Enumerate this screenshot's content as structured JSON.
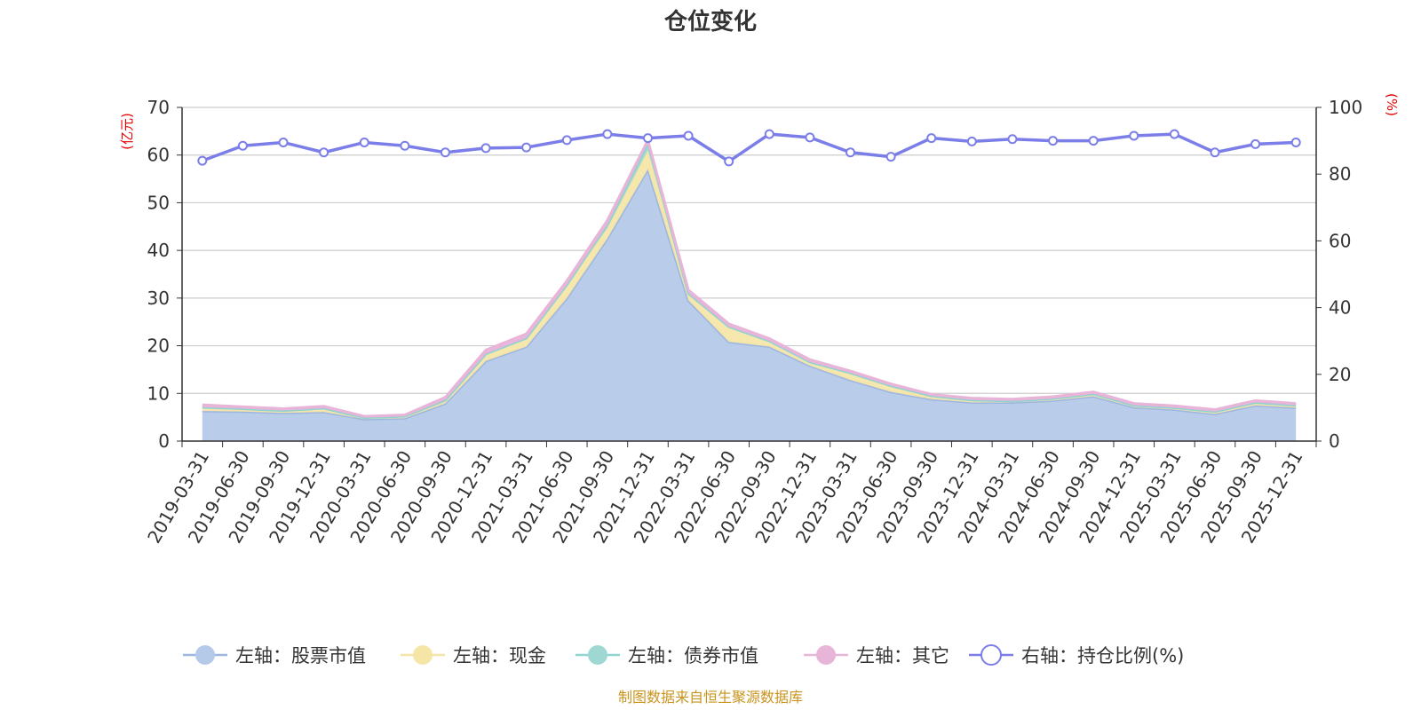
{
  "source_note": "制图数据来自恒生聚源数据库",
  "chart_data": {
    "type": "area",
    "title": "仓位变化",
    "y_left_unit": "(亿元)",
    "y_right_unit": "(%)",
    "y_left_range": [
      0,
      70
    ],
    "y_left_ticks": [
      "0",
      "10",
      "20",
      "30",
      "40",
      "50",
      "60",
      "70"
    ],
    "y_right_range": [
      0,
      100
    ],
    "y_right_ticks": [
      "0",
      "20",
      "40",
      "60",
      "80",
      "100"
    ],
    "grid": true,
    "legend_position": "bottom",
    "categories": [
      "2019-03-31",
      "2019-06-30",
      "2019-09-30",
      "2019-12-31",
      "2020-03-31",
      "2020-06-30",
      "2020-09-30",
      "2020-12-31",
      "2021-03-31",
      "2021-06-30",
      "2021-09-30",
      "2021-12-31",
      "2022-03-31",
      "2022-06-30",
      "2022-09-30",
      "2022-12-31",
      "2023-03-31",
      "2023-06-30",
      "2023-09-30",
      "2023-12-31",
      "2024-03-31",
      "2024-06-30",
      "2024-09-30",
      "2024-12-31",
      "2025-03-31",
      "2025-06-30",
      "2025-09-30",
      "2025-12-31"
    ],
    "series": [
      {
        "name": "左轴：股票市值",
        "axis": "left",
        "stacked": true,
        "color": "#9db6e0",
        "fill": "#b5c9e8",
        "values": [
          6.3,
          6.2,
          5.9,
          6.1,
          4.6,
          4.8,
          7.9,
          16.8,
          19.8,
          30.0,
          42.5,
          57.0,
          29.5,
          20.8,
          19.8,
          15.8,
          12.8,
          10.3,
          8.8,
          8.1,
          8.1,
          8.5,
          9.4,
          7.1,
          6.6,
          5.7,
          7.5,
          7.0
        ]
      },
      {
        "name": "左轴：现金",
        "axis": "left",
        "stacked": true,
        "color": "#f5e6a8",
        "fill": "#f5e6a8",
        "values": [
          0.8,
          0.6,
          0.5,
          0.8,
          0.3,
          0.4,
          0.7,
          1.5,
          1.8,
          2.8,
          2.2,
          4.0,
          1.5,
          3.2,
          1.2,
          0.8,
          1.5,
          1.3,
          0.7,
          0.5,
          0.3,
          0.4,
          0.5,
          0.4,
          0.4,
          0.5,
          0.6,
          0.5
        ]
      },
      {
        "name": "左轴：债券市值",
        "axis": "left",
        "stacked": true,
        "color": "#8fd3d3",
        "fill": "#9fd8d3",
        "values": [
          0,
          0,
          0,
          0,
          0,
          0,
          0,
          0,
          0,
          0,
          0.7,
          1.5,
          0,
          0,
          0,
          0,
          0,
          0,
          0,
          0,
          0,
          0,
          0,
          0,
          0,
          0,
          0,
          0
        ]
      },
      {
        "name": "左轴：其它",
        "axis": "left",
        "stacked": true,
        "color": "#e8b4d8",
        "fill": "#e8b4d8",
        "values": [
          0.5,
          0.4,
          0.4,
          0.4,
          0.3,
          0.3,
          0.6,
          0.8,
          0.9,
          0.8,
          0.9,
          0.6,
          0.7,
          0.6,
          0.5,
          0.5,
          0.4,
          0.4,
          0.3,
          0.4,
          0.4,
          0.4,
          0.4,
          0.4,
          0.4,
          0.4,
          0.4,
          0.4
        ]
      },
      {
        "name": "右轴：持仓比例(%)",
        "axis": "right",
        "type": "line",
        "color": "#7b7ee8",
        "values": [
          84,
          88.5,
          89.5,
          86.5,
          89.5,
          88.5,
          86.5,
          87.8,
          88,
          90.2,
          92,
          90.8,
          91.5,
          83.8,
          92,
          91,
          86.5,
          85.2,
          90.8,
          89.8,
          90.5,
          90,
          90,
          91.5,
          92,
          86.5,
          89,
          89.5
        ]
      }
    ]
  }
}
